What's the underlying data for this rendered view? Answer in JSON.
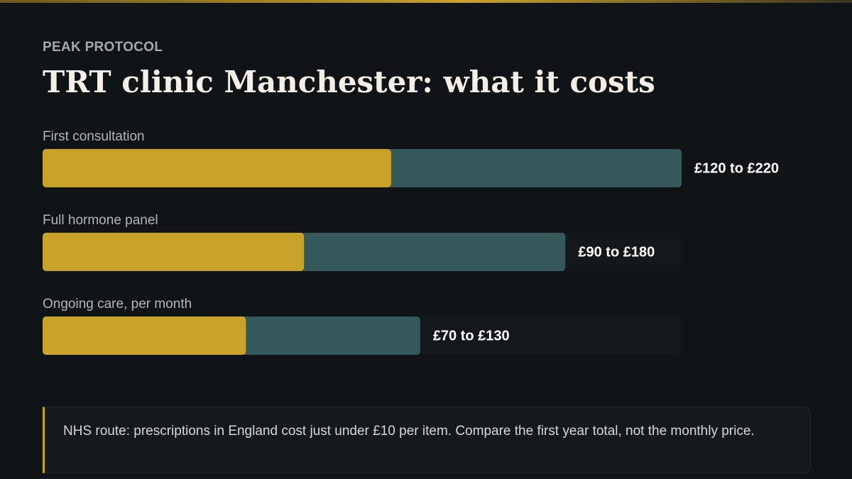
{
  "brand": "PEAK PROTOCOL",
  "chart_data": {
    "type": "range_bar",
    "title": "TRT clinic Manchester: what it costs",
    "categories": [
      "First consultation",
      "Full hormone panel",
      "Ongoing care, per month"
    ],
    "low": [
      120,
      90,
      70
    ],
    "high": [
      220,
      180,
      130
    ],
    "value_labels": [
      "£120 to £220",
      "£90 to £180",
      "£70 to £130"
    ],
    "xlim": [
      0,
      220
    ],
    "low_color": "#c9a22a",
    "high_color": "#35595b"
  },
  "note": "NHS route: prescriptions in England cost just under £10 per item. Compare the first year total, not the monthly price."
}
